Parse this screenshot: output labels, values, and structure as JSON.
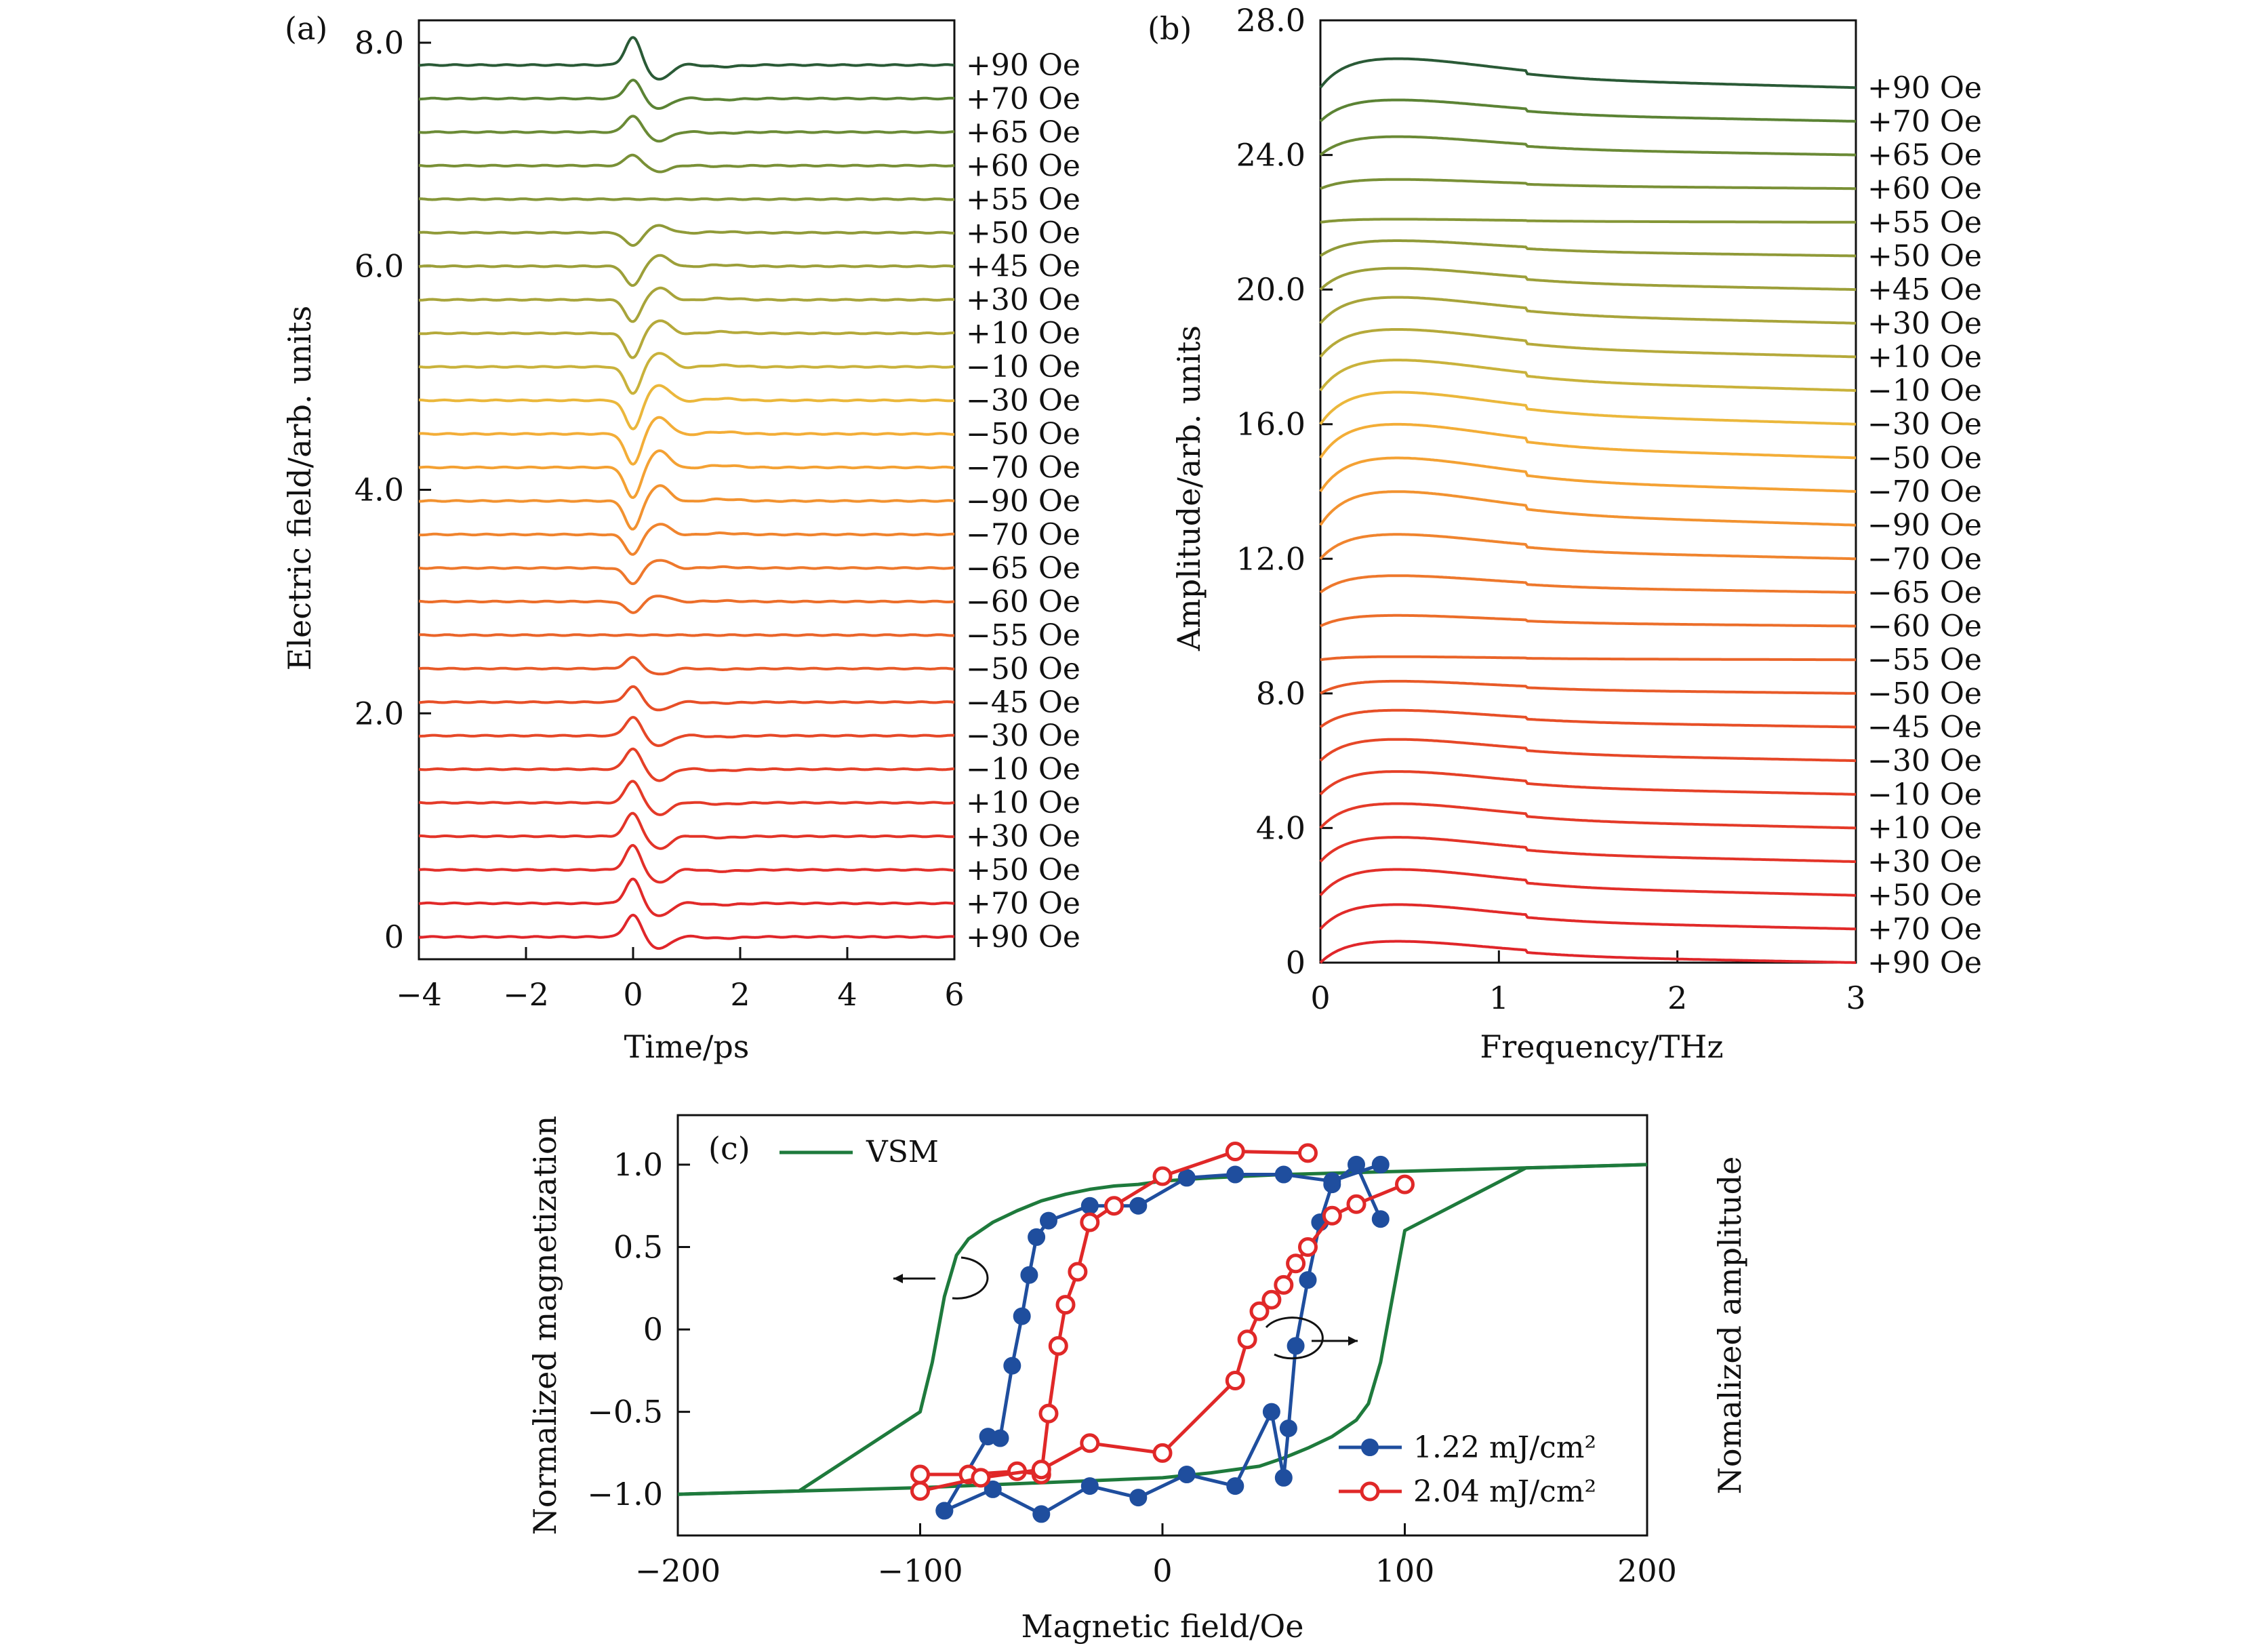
{
  "chart_data": [
    {
      "type": "line",
      "panel": "(a)",
      "xlabel": "Time/ps",
      "ylabel": "Electric field/arb. units",
      "xlim": [
        -4,
        6
      ],
      "ylim": [
        -0.2,
        8.2
      ],
      "xticks": [
        -4,
        -2,
        0,
        2,
        4,
        6
      ],
      "xtick_labels": [
        "−4",
        "−2",
        "0",
        "2",
        "4",
        "6"
      ],
      "yticks": [
        0,
        2,
        4,
        6,
        8
      ],
      "ytick_labels": [
        "0",
        "2.0",
        "4.0",
        "6.0",
        "8.0"
      ],
      "grid": false,
      "traces": [
        {
          "label": "+90 Oe",
          "offset": 0.0,
          "amp": 0.2,
          "color": "#e0262a"
        },
        {
          "label": "+70 Oe",
          "offset": 0.3,
          "amp": 0.22,
          "color": "#e12a29"
        },
        {
          "label": "+50 Oe",
          "offset": 0.6,
          "amp": 0.22,
          "color": "#e22f29"
        },
        {
          "label": "+30 Oe",
          "offset": 0.9,
          "amp": 0.21,
          "color": "#e33428"
        },
        {
          "label": "+10 Oe",
          "offset": 1.2,
          "amp": 0.2,
          "color": "#e43a28"
        },
        {
          "label": "−10 Oe",
          "offset": 1.5,
          "amp": 0.19,
          "color": "#e54027"
        },
        {
          "label": "−30 Oe",
          "offset": 1.8,
          "amp": 0.17,
          "color": "#e64727"
        },
        {
          "label": "−45 Oe",
          "offset": 2.1,
          "amp": 0.14,
          "color": "#e74f27"
        },
        {
          "label": "−50 Oe",
          "offset": 2.4,
          "amp": 0.1,
          "color": "#e85a28"
        },
        {
          "label": "−55 Oe",
          "offset": 2.7,
          "amp": 0.0,
          "color": "#ea6429"
        },
        {
          "label": "−60 Oe",
          "offset": 3.0,
          "amp": -0.1,
          "color": "#ec6e2a"
        },
        {
          "label": "−65 Oe",
          "offset": 3.3,
          "amp": -0.14,
          "color": "#ee782c"
        },
        {
          "label": "−70 Oe",
          "offset": 3.6,
          "amp": -0.18,
          "color": "#f0842e"
        },
        {
          "label": "−90 Oe",
          "offset": 3.9,
          "amp": -0.26,
          "color": "#f29230"
        },
        {
          "label": "−70 Oe",
          "offset": 4.2,
          "amp": -0.28,
          "color": "#f4a133"
        },
        {
          "label": "−50 Oe",
          "offset": 4.5,
          "amp": -0.28,
          "color": "#f3ad37"
        },
        {
          "label": "−30 Oe",
          "offset": 4.8,
          "amp": -0.26,
          "color": "#ebb73b"
        },
        {
          "label": "−10 Oe",
          "offset": 5.1,
          "amp": -0.24,
          "color": "#c9b23b"
        },
        {
          "label": "+10 Oe",
          "offset": 5.4,
          "amp": -0.22,
          "color": "#b5a93a"
        },
        {
          "label": "+30 Oe",
          "offset": 5.7,
          "amp": -0.2,
          "color": "#a8a43a"
        },
        {
          "label": "+45 Oe",
          "offset": 6.0,
          "amp": -0.18,
          "color": "#9c9f39"
        },
        {
          "label": "+50 Oe",
          "offset": 6.3,
          "amp": -0.12,
          "color": "#909a38"
        },
        {
          "label": "+55 Oe",
          "offset": 6.6,
          "amp": 0.0,
          "color": "#859637"
        },
        {
          "label": "+60 Oe",
          "offset": 6.9,
          "amp": 0.1,
          "color": "#799036"
        },
        {
          "label": "+65 Oe",
          "offset": 7.2,
          "amp": 0.15,
          "color": "#6a8a35"
        },
        {
          "label": "+70 Oe",
          "offset": 7.5,
          "amp": 0.17,
          "color": "#5b8334"
        },
        {
          "label": "+90 Oe",
          "offset": 7.8,
          "amp": 0.25,
          "color": "#2a5a36"
        }
      ]
    },
    {
      "type": "line",
      "panel": "(b)",
      "xlabel": "Frequency/THz",
      "ylabel": "Amplitude/arb. units",
      "xlim": [
        0,
        3
      ],
      "ylim": [
        0,
        28
      ],
      "xticks": [
        0,
        1,
        2,
        3
      ],
      "xtick_labels": [
        "0",
        "1",
        "2",
        "3"
      ],
      "yticks": [
        0,
        4,
        8,
        12,
        16,
        20,
        24,
        28
      ],
      "ytick_labels": [
        "0",
        "4.0",
        "8.0",
        "12.0",
        "16.0",
        "20.0",
        "24.0",
        "28.0"
      ],
      "grid": false,
      "traces": [
        {
          "label": "+90 Oe",
          "offset": 0.0,
          "amp": 0.7,
          "color": "#e0262a"
        },
        {
          "label": "+70 Oe",
          "offset": 1.0,
          "amp": 0.8,
          "color": "#e12a29"
        },
        {
          "label": "+50 Oe",
          "offset": 2.0,
          "amp": 0.85,
          "color": "#e22f29"
        },
        {
          "label": "+30 Oe",
          "offset": 3.0,
          "amp": 0.8,
          "color": "#e33428"
        },
        {
          "label": "+10 Oe",
          "offset": 4.0,
          "amp": 0.8,
          "color": "#e43a28"
        },
        {
          "label": "−10 Oe",
          "offset": 5.0,
          "amp": 0.75,
          "color": "#e54027"
        },
        {
          "label": "−30 Oe",
          "offset": 6.0,
          "amp": 0.7,
          "color": "#e64727"
        },
        {
          "label": "−45 Oe",
          "offset": 7.0,
          "amp": 0.55,
          "color": "#e74f27"
        },
        {
          "label": "−50 Oe",
          "offset": 8.0,
          "amp": 0.4,
          "color": "#e85a28"
        },
        {
          "label": "−55 Oe",
          "offset": 9.0,
          "amp": 0.1,
          "color": "#ea6429"
        },
        {
          "label": "−60 Oe",
          "offset": 10.0,
          "amp": 0.35,
          "color": "#ec6e2a"
        },
        {
          "label": "−65 Oe",
          "offset": 11.0,
          "amp": 0.55,
          "color": "#ee782c"
        },
        {
          "label": "−70 Oe",
          "offset": 12.0,
          "amp": 0.8,
          "color": "#f0842e"
        },
        {
          "label": "−90 Oe",
          "offset": 13.0,
          "amp": 1.1,
          "color": "#f29230"
        },
        {
          "label": "−70 Oe",
          "offset": 14.0,
          "amp": 1.1,
          "color": "#f4a133"
        },
        {
          "label": "−50 Oe",
          "offset": 15.0,
          "amp": 1.1,
          "color": "#f3ad37"
        },
        {
          "label": "−30 Oe",
          "offset": 16.0,
          "amp": 1.05,
          "color": "#ebb73b"
        },
        {
          "label": "−10 Oe",
          "offset": 17.0,
          "amp": 1.0,
          "color": "#c9b23b"
        },
        {
          "label": "+10 Oe",
          "offset": 18.0,
          "amp": 0.9,
          "color": "#b5a93a"
        },
        {
          "label": "+30 Oe",
          "offset": 19.0,
          "amp": 0.85,
          "color": "#a8a43a"
        },
        {
          "label": "+45 Oe",
          "offset": 20.0,
          "amp": 0.7,
          "color": "#9c9f39"
        },
        {
          "label": "+50 Oe",
          "offset": 21.0,
          "amp": 0.5,
          "color": "#909a38"
        },
        {
          "label": "+55 Oe",
          "offset": 22.0,
          "amp": 0.1,
          "color": "#859637"
        },
        {
          "label": "+60 Oe",
          "offset": 23.0,
          "amp": 0.3,
          "color": "#799036"
        },
        {
          "label": "+65 Oe",
          "offset": 24.0,
          "amp": 0.6,
          "color": "#6a8a35"
        },
        {
          "label": "+70 Oe",
          "offset": 25.0,
          "amp": 0.7,
          "color": "#5b8334"
        },
        {
          "label": "+90 Oe",
          "offset": 26.0,
          "amp": 0.95,
          "color": "#2a5a36"
        }
      ]
    },
    {
      "type": "line",
      "panel": "(c)",
      "xlabel": "Magnetic field/Oe",
      "ylabel": "Normalized magnetization",
      "ylabel_right": "Nomalized amplitude",
      "xlim": [
        -200,
        200
      ],
      "ylim": [
        -1.25,
        1.3
      ],
      "xticks": [
        -200,
        -100,
        0,
        100,
        200
      ],
      "xtick_labels": [
        "−200",
        "−100",
        "0",
        "100",
        "200"
      ],
      "yticks": [
        -1,
        -0.5,
        0,
        0.5,
        1
      ],
      "ytick_labels": [
        "−1.0",
        "−0.5",
        "0",
        "0.5",
        "1.0"
      ],
      "grid": false,
      "legend_placement": "bottom-right",
      "series": [
        {
          "name": "VSM",
          "color": "#1e7a3c",
          "marker": "none",
          "x": [
            -200,
            -150,
            -100,
            -95,
            -90,
            -85,
            -80,
            -75,
            -70,
            -60,
            -50,
            -40,
            -30,
            -20,
            -10,
            0,
            20,
            50,
            100,
            150,
            200
          ],
          "y": [
            -1.0,
            -0.98,
            -0.5,
            -0.2,
            0.2,
            0.45,
            0.55,
            0.6,
            0.65,
            0.72,
            0.78,
            0.82,
            0.85,
            0.87,
            0.88,
            0.9,
            0.92,
            0.94,
            0.96,
            0.98,
            1.0
          ]
        },
        {
          "name": "VSM",
          "color": "#1e7a3c",
          "marker": "none",
          "x": [
            -200,
            -100,
            0,
            20,
            40,
            50,
            60,
            70,
            75,
            80,
            85,
            90,
            95,
            100,
            150,
            200
          ],
          "y": [
            -1.0,
            -0.96,
            -0.9,
            -0.87,
            -0.83,
            -0.78,
            -0.72,
            -0.65,
            -0.6,
            -0.55,
            -0.45,
            -0.2,
            0.2,
            0.6,
            0.98,
            1.0
          ]
        },
        {
          "name": "1.22 mJ/cm²",
          "color": "#1f4e9e",
          "marker": "filled",
          "x": [
            -90,
            -70,
            -50,
            -30,
            -10,
            10,
            30,
            45,
            50,
            52,
            55,
            60,
            65,
            70,
            80,
            90
          ],
          "y": [
            -1.1,
            -0.97,
            -1.12,
            -0.95,
            -1.02,
            -0.88,
            -0.95,
            -0.5,
            -0.9,
            -0.6,
            -0.1,
            0.3,
            0.65,
            0.88,
            1.0,
            0.67
          ]
        },
        {
          "name": "1.22 mJ/cm²",
          "color": "#1f4e9e",
          "marker": "filled",
          "x": [
            -90,
            -72,
            -67,
            -62,
            -58,
            -55,
            -52,
            -47,
            -30,
            -10,
            10,
            30,
            50,
            70,
            90
          ],
          "y": [
            -1.1,
            -0.65,
            -0.66,
            -0.22,
            0.08,
            0.33,
            0.56,
            0.66,
            0.75,
            0.75,
            0.92,
            0.94,
            0.94,
            0.9,
            1.0
          ]
        },
        {
          "name": "2.04 mJ/cm²",
          "color": "#e02828",
          "marker": "open",
          "x": [
            -100,
            -80,
            -60,
            -50,
            -47,
            -43,
            -40,
            -35,
            -30,
            -20,
            0,
            30,
            60
          ],
          "y": [
            -0.88,
            -0.88,
            -0.86,
            -0.88,
            -0.51,
            -0.1,
            0.15,
            0.35,
            0.65,
            0.75,
            0.93,
            1.08,
            1.07
          ]
        },
        {
          "name": "2.04 mJ/cm²",
          "color": "#e02828",
          "marker": "open",
          "x": [
            -100,
            -75,
            -50,
            -30,
            0,
            30,
            35,
            40,
            45,
            50,
            55,
            60,
            70,
            80,
            100
          ],
          "y": [
            -0.98,
            -0.9,
            -0.85,
            -0.69,
            -0.75,
            -0.31,
            -0.06,
            0.11,
            0.18,
            0.27,
            0.4,
            0.5,
            0.69,
            0.76,
            0.88
          ]
        }
      ]
    }
  ],
  "labels": {
    "panel_a": "(a)",
    "panel_b": "(b)",
    "panel_c": "(c)"
  }
}
